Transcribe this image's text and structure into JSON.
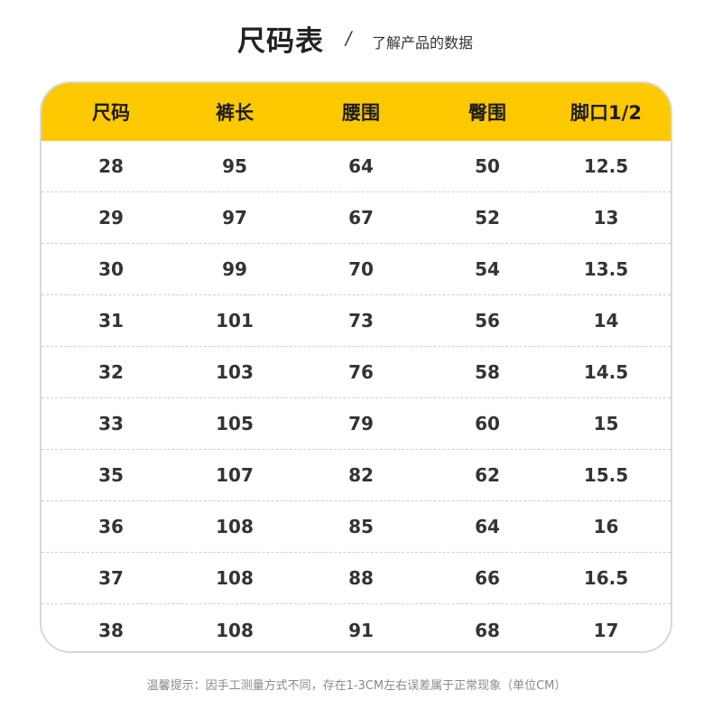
{
  "header": {
    "title": "尺码表",
    "separator": "/",
    "subtitle": "了解产品的数据"
  },
  "table": {
    "columns": [
      "尺码",
      "裤长",
      "腰围",
      "臀围",
      "脚口1/2"
    ],
    "rows": [
      [
        "28",
        "95",
        "64",
        "50",
        "12.5"
      ],
      [
        "29",
        "97",
        "67",
        "52",
        "13"
      ],
      [
        "30",
        "99",
        "70",
        "54",
        "13.5"
      ],
      [
        "31",
        "101",
        "73",
        "56",
        "14"
      ],
      [
        "32",
        "103",
        "76",
        "58",
        "14.5"
      ],
      [
        "33",
        "105",
        "79",
        "60",
        "15"
      ],
      [
        "35",
        "107",
        "82",
        "62",
        "15.5"
      ],
      [
        "36",
        "108",
        "85",
        "64",
        "16"
      ],
      [
        "37",
        "108",
        "88",
        "66",
        "16.5"
      ],
      [
        "38",
        "108",
        "91",
        "68",
        "17"
      ]
    ]
  },
  "footnote": "温馨提示：因手工测量方式不同，存在1-3CM左右误差属于正常现象（单位CM）",
  "colors": {
    "header_bg": "#fcc800",
    "border": "#d8d8d8",
    "text": "#333333",
    "footnote_text": "#8a8a8a"
  }
}
